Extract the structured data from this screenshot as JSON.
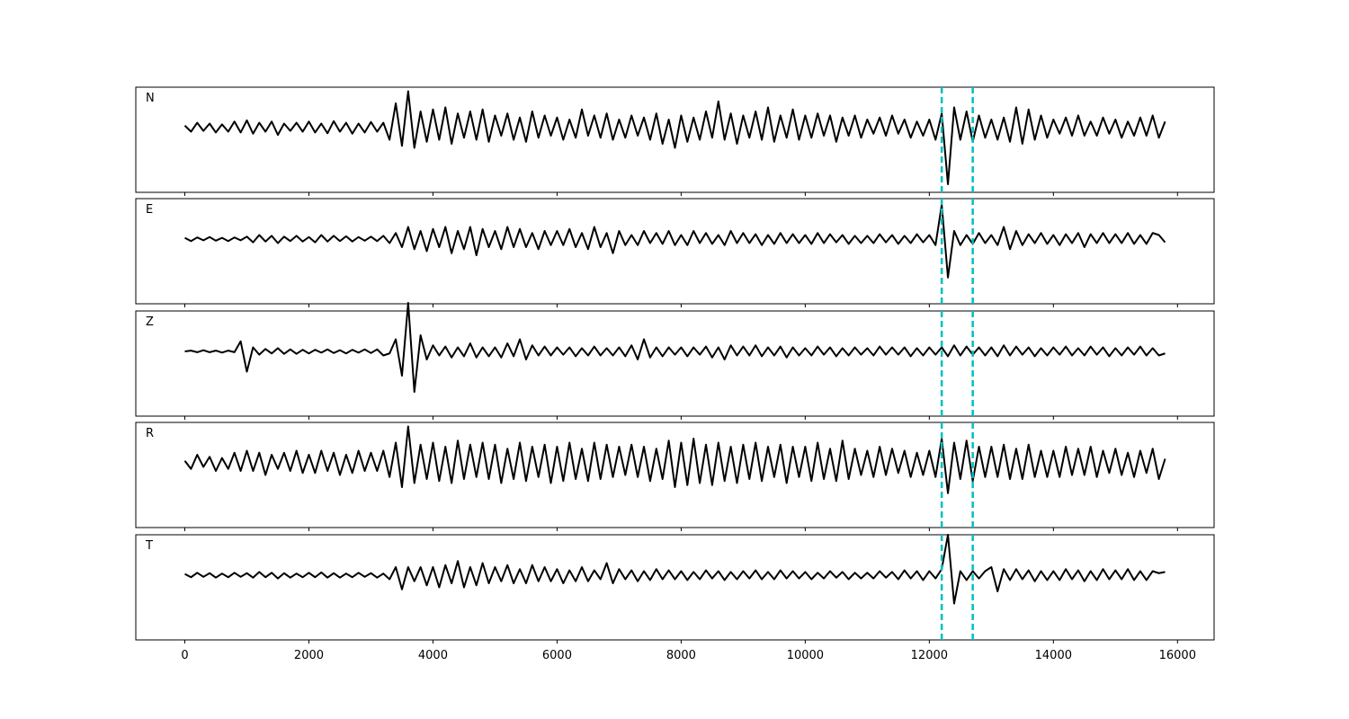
{
  "chart_data": {
    "type": "line",
    "layout": "stacked",
    "x": [
      0,
      100,
      200,
      300,
      400,
      500,
      600,
      700,
      800,
      900,
      1000,
      1100,
      1200,
      1300,
      1400,
      1500,
      1600,
      1700,
      1800,
      1900,
      2000,
      2100,
      2200,
      2300,
      2400,
      2500,
      2600,
      2700,
      2800,
      2900,
      3000,
      3100,
      3200,
      3300,
      3400,
      3500,
      3600,
      3700,
      3800,
      3900,
      4000,
      4100,
      4200,
      4300,
      4400,
      4500,
      4600,
      4700,
      4800,
      4900,
      5000,
      5100,
      5200,
      5300,
      5400,
      5500,
      5600,
      5700,
      5800,
      5900,
      6000,
      6100,
      6200,
      6300,
      6400,
      6500,
      6600,
      6700,
      6800,
      6900,
      7000,
      7100,
      7200,
      7300,
      7400,
      7500,
      7600,
      7700,
      7800,
      7900,
      8000,
      8100,
      8200,
      8300,
      8400,
      8500,
      8600,
      8700,
      8800,
      8900,
      9000,
      9100,
      9200,
      9300,
      9400,
      9500,
      9600,
      9700,
      9800,
      9900,
      10000,
      10100,
      10200,
      10300,
      10400,
      10500,
      10600,
      10700,
      10800,
      10900,
      11000,
      11100,
      11200,
      11300,
      11400,
      11500,
      11600,
      11700,
      11800,
      11900,
      12000,
      12100,
      12200,
      12300,
      12400,
      12500,
      12600,
      12700,
      12800,
      12900,
      13000,
      13100,
      13200,
      13300,
      13400,
      13500,
      13600,
      13700,
      13800,
      13900,
      14000,
      14100,
      14200,
      14300,
      14400,
      14500,
      14600,
      14700,
      14800,
      14900,
      15000,
      15100,
      15200,
      15300,
      15400,
      15500,
      15600,
      15700,
      15800
    ],
    "series": [
      {
        "name": "N",
        "color": "#000000",
        "values": [
          0.05,
          -0.1,
          0.12,
          -0.08,
          0.1,
          -0.12,
          0.08,
          -0.1,
          0.15,
          -0.12,
          0.18,
          -0.15,
          0.12,
          -0.1,
          0.15,
          -0.18,
          0.1,
          -0.08,
          0.12,
          -0.1,
          0.15,
          -0.12,
          0.1,
          -0.14,
          0.16,
          -0.1,
          0.12,
          -0.15,
          0.1,
          -0.12,
          0.14,
          -0.1,
          0.12,
          -0.3,
          0.6,
          -0.45,
          0.9,
          -0.5,
          0.4,
          -0.35,
          0.45,
          -0.3,
          0.5,
          -0.4,
          0.35,
          -0.25,
          0.4,
          -0.3,
          0.45,
          -0.35,
          0.3,
          -0.2,
          0.35,
          -0.3,
          0.25,
          -0.35,
          0.4,
          -0.25,
          0.3,
          -0.2,
          0.25,
          -0.3,
          0.2,
          -0.25,
          0.45,
          -0.2,
          0.3,
          -0.25,
          0.35,
          -0.3,
          0.2,
          -0.25,
          0.3,
          -0.2,
          0.25,
          -0.3,
          0.35,
          -0.4,
          0.2,
          -0.5,
          0.3,
          -0.35,
          0.25,
          -0.3,
          0.4,
          -0.25,
          0.65,
          -0.3,
          0.35,
          -0.4,
          0.3,
          -0.25,
          0.4,
          -0.3,
          0.5,
          -0.35,
          0.3,
          -0.25,
          0.45,
          -0.3,
          0.3,
          -0.25,
          0.35,
          -0.2,
          0.3,
          -0.35,
          0.25,
          -0.2,
          0.3,
          -0.25,
          0.2,
          -0.15,
          0.25,
          -0.2,
          0.3,
          -0.15,
          0.2,
          -0.25,
          0.15,
          -0.2,
          0.2,
          -0.3,
          0.35,
          -1.4,
          0.5,
          -0.3,
          0.4,
          -0.35,
          0.3,
          -0.25,
          0.2,
          -0.3,
          0.25,
          -0.35,
          0.5,
          -0.4,
          0.45,
          -0.3,
          0.3,
          -0.25,
          0.2,
          -0.15,
          0.25,
          -0.2,
          0.3,
          -0.2,
          0.15,
          -0.2,
          0.25,
          -0.15,
          0.2,
          -0.25,
          0.15,
          -0.2,
          0.25,
          -0.2,
          0.3,
          -0.25,
          0.15
        ]
      },
      {
        "name": "E",
        "color": "#000000",
        "values": [
          0.03,
          -0.05,
          0.04,
          -0.03,
          0.05,
          -0.04,
          0.03,
          -0.05,
          0.04,
          -0.03,
          0.06,
          -0.08,
          0.1,
          -0.06,
          0.08,
          -0.1,
          0.06,
          -0.05,
          0.08,
          -0.06,
          0.05,
          -0.08,
          0.1,
          -0.06,
          0.08,
          -0.05,
          0.07,
          -0.06,
          0.05,
          -0.04,
          0.06,
          -0.05,
          0.08,
          -0.1,
          0.15,
          -0.2,
          0.3,
          -0.25,
          0.2,
          -0.3,
          0.25,
          -0.2,
          0.3,
          -0.35,
          0.2,
          -0.25,
          0.3,
          -0.4,
          0.25,
          -0.2,
          0.2,
          -0.25,
          0.3,
          -0.2,
          0.25,
          -0.2,
          0.15,
          -0.25,
          0.2,
          -0.15,
          0.2,
          -0.15,
          0.25,
          -0.2,
          0.15,
          -0.25,
          0.3,
          -0.2,
          0.15,
          -0.35,
          0.2,
          -0.15,
          0.1,
          -0.15,
          0.2,
          -0.1,
          0.15,
          -0.12,
          0.2,
          -0.15,
          0.1,
          -0.15,
          0.2,
          -0.1,
          0.15,
          -0.12,
          0.1,
          -0.15,
          0.2,
          -0.1,
          0.15,
          -0.1,
          0.12,
          -0.15,
          0.1,
          -0.12,
          0.15,
          -0.1,
          0.12,
          -0.1,
          0.1,
          -0.12,
          0.15,
          -0.1,
          0.12,
          -0.08,
          0.1,
          -0.12,
          0.08,
          -0.1,
          0.08,
          -0.1,
          0.12,
          -0.08,
          0.1,
          -0.12,
          0.08,
          -0.1,
          0.12,
          -0.08,
          0.1,
          -0.15,
          0.85,
          -0.95,
          0.2,
          -0.15,
          0.1,
          -0.12,
          0.15,
          -0.1,
          0.1,
          -0.15,
          0.3,
          -0.25,
          0.2,
          -0.15,
          0.12,
          -0.1,
          0.15,
          -0.12,
          0.1,
          -0.15,
          0.12,
          -0.1,
          0.15,
          -0.2,
          0.12,
          -0.1,
          0.15,
          -0.1,
          0.12,
          -0.1,
          0.15,
          -0.12,
          0.1,
          -0.12,
          0.15,
          0.1,
          -0.08
        ]
      },
      {
        "name": "Z",
        "color": "#000000",
        "values": [
          0.0,
          0.02,
          -0.02,
          0.03,
          -0.02,
          0.02,
          -0.03,
          0.02,
          -0.02,
          0.25,
          -0.5,
          0.1,
          -0.08,
          0.06,
          -0.05,
          0.08,
          -0.06,
          0.05,
          -0.06,
          0.04,
          -0.05,
          0.04,
          -0.03,
          0.05,
          -0.04,
          0.03,
          -0.05,
          0.04,
          -0.03,
          0.05,
          -0.04,
          0.05,
          -0.1,
          -0.05,
          0.3,
          -0.6,
          1.2,
          -1.0,
          0.4,
          -0.2,
          0.15,
          -0.1,
          0.12,
          -0.15,
          0.1,
          -0.12,
          0.2,
          -0.15,
          0.1,
          -0.12,
          0.1,
          -0.15,
          0.2,
          -0.12,
          0.3,
          -0.2,
          0.15,
          -0.1,
          0.12,
          -0.1,
          0.1,
          -0.08,
          0.1,
          -0.12,
          0.08,
          -0.1,
          0.12,
          -0.1,
          0.08,
          -0.1,
          0.1,
          -0.12,
          0.15,
          -0.2,
          0.3,
          -0.15,
          0.1,
          -0.12,
          0.1,
          -0.08,
          0.1,
          -0.12,
          0.1,
          -0.08,
          0.12,
          -0.15,
          0.1,
          -0.2,
          0.15,
          -0.1,
          0.12,
          -0.1,
          0.15,
          -0.12,
          0.1,
          -0.1,
          0.12,
          -0.15,
          0.1,
          -0.1,
          0.08,
          -0.1,
          0.12,
          -0.08,
          0.1,
          -0.12,
          0.08,
          -0.1,
          0.1,
          -0.08,
          0.08,
          -0.1,
          0.12,
          -0.08,
          0.1,
          -0.08,
          0.1,
          -0.12,
          0.08,
          -0.1,
          0.1,
          -0.08,
          0.1,
          -0.12,
          0.15,
          -0.1,
          0.12,
          -0.08,
          0.1,
          -0.1,
          0.1,
          -0.12,
          0.15,
          -0.1,
          0.12,
          -0.08,
          0.1,
          -0.12,
          0.08,
          -0.1,
          0.1,
          -0.08,
          0.12,
          -0.1,
          0.08,
          -0.1,
          0.12,
          -0.08,
          0.1,
          -0.12,
          0.08,
          -0.1,
          0.1,
          -0.08,
          0.12,
          -0.1,
          0.08,
          -0.1,
          -0.05
        ]
      },
      {
        "name": "R",
        "color": "#000000",
        "values": [
          0.05,
          -0.15,
          0.2,
          -0.1,
          0.15,
          -0.2,
          0.12,
          -0.15,
          0.25,
          -0.2,
          0.3,
          -0.2,
          0.25,
          -0.3,
          0.2,
          -0.15,
          0.25,
          -0.2,
          0.3,
          -0.25,
          0.2,
          -0.25,
          0.3,
          -0.2,
          0.25,
          -0.3,
          0.2,
          -0.25,
          0.3,
          -0.2,
          0.25,
          -0.2,
          0.3,
          -0.35,
          0.5,
          -0.6,
          0.9,
          -0.5,
          0.45,
          -0.4,
          0.5,
          -0.45,
          0.4,
          -0.5,
          0.55,
          -0.4,
          0.45,
          -0.35,
          0.5,
          -0.4,
          0.45,
          -0.5,
          0.35,
          -0.4,
          0.5,
          -0.45,
          0.4,
          -0.35,
          0.45,
          -0.5,
          0.4,
          -0.45,
          0.5,
          -0.4,
          0.35,
          -0.45,
          0.5,
          -0.4,
          0.45,
          -0.35,
          0.4,
          -0.3,
          0.45,
          -0.35,
          0.4,
          -0.45,
          0.35,
          -0.4,
          0.55,
          -0.6,
          0.5,
          -0.55,
          0.6,
          -0.5,
          0.45,
          -0.55,
          0.5,
          -0.45,
          0.4,
          -0.5,
          0.45,
          -0.4,
          0.5,
          -0.45,
          0.4,
          -0.35,
          0.45,
          -0.5,
          0.4,
          -0.35,
          0.4,
          -0.45,
          0.5,
          -0.4,
          0.35,
          -0.45,
          0.55,
          -0.4,
          0.35,
          -0.3,
          0.3,
          -0.35,
          0.4,
          -0.3,
          0.35,
          -0.25,
          0.3,
          -0.35,
          0.25,
          -0.3,
          0.3,
          -0.35,
          0.6,
          -0.75,
          0.5,
          -0.4,
          0.55,
          -0.45,
          0.4,
          -0.35,
          0.4,
          -0.35,
          0.45,
          -0.4,
          0.35,
          -0.4,
          0.45,
          -0.35,
          0.3,
          -0.35,
          0.3,
          -0.35,
          0.4,
          -0.3,
          0.35,
          -0.3,
          0.4,
          -0.35,
          0.3,
          -0.25,
          0.35,
          -0.3,
          0.25,
          -0.35,
          0.3,
          -0.25,
          0.35,
          -0.4,
          0.1
        ]
      },
      {
        "name": "T",
        "color": "#000000",
        "values": [
          0.03,
          -0.05,
          0.06,
          -0.04,
          0.05,
          -0.06,
          0.04,
          -0.05,
          0.06,
          -0.04,
          0.05,
          -0.06,
          0.08,
          -0.05,
          0.06,
          -0.08,
          0.05,
          -0.06,
          0.04,
          -0.05,
          0.06,
          -0.05,
          0.07,
          -0.06,
          0.05,
          -0.06,
          0.04,
          -0.05,
          0.06,
          -0.04,
          0.05,
          -0.06,
          0.04,
          -0.1,
          0.2,
          -0.35,
          0.2,
          -0.15,
          0.2,
          -0.25,
          0.2,
          -0.3,
          0.25,
          -0.2,
          0.35,
          -0.3,
          0.2,
          -0.25,
          0.3,
          -0.2,
          0.2,
          -0.15,
          0.25,
          -0.2,
          0.15,
          -0.2,
          0.25,
          -0.15,
          0.2,
          -0.15,
          0.15,
          -0.2,
          0.12,
          -0.15,
          0.2,
          -0.15,
          0.12,
          -0.1,
          0.3,
          -0.2,
          0.15,
          -0.1,
          0.12,
          -0.15,
          0.1,
          -0.12,
          0.15,
          -0.1,
          0.12,
          -0.1,
          0.1,
          -0.12,
          0.08,
          -0.1,
          0.12,
          -0.08,
          0.1,
          -0.12,
          0.08,
          -0.1,
          0.1,
          -0.08,
          0.12,
          -0.1,
          0.08,
          -0.1,
          0.12,
          -0.08,
          0.1,
          -0.08,
          0.08,
          -0.1,
          0.06,
          -0.08,
          0.1,
          -0.06,
          0.08,
          -0.1,
          0.06,
          -0.08,
          0.06,
          -0.08,
          0.1,
          -0.06,
          0.08,
          -0.1,
          0.12,
          -0.08,
          0.1,
          -0.12,
          0.1,
          -0.08,
          0.15,
          1.0,
          -0.7,
          0.1,
          -0.12,
          0.1,
          -0.08,
          0.1,
          0.2,
          -0.4,
          0.15,
          -0.12,
          0.15,
          -0.1,
          0.12,
          -0.15,
          0.1,
          -0.12,
          0.1,
          -0.12,
          0.15,
          -0.1,
          0.12,
          -0.15,
          0.1,
          -0.12,
          0.15,
          -0.1,
          0.12,
          -0.1,
          0.15,
          -0.12,
          0.1,
          -0.12,
          0.1,
          0.05,
          0.08
        ]
      }
    ],
    "vlines": [
      12200,
      12700
    ],
    "vline_color": "#00bfbf",
    "xlim": [
      -790,
      16590
    ],
    "xticks": [
      0,
      2000,
      4000,
      6000,
      8000,
      10000,
      12000,
      14000,
      16000
    ],
    "ylim": [
      -1.6,
      1.0
    ],
    "grid": false
  }
}
